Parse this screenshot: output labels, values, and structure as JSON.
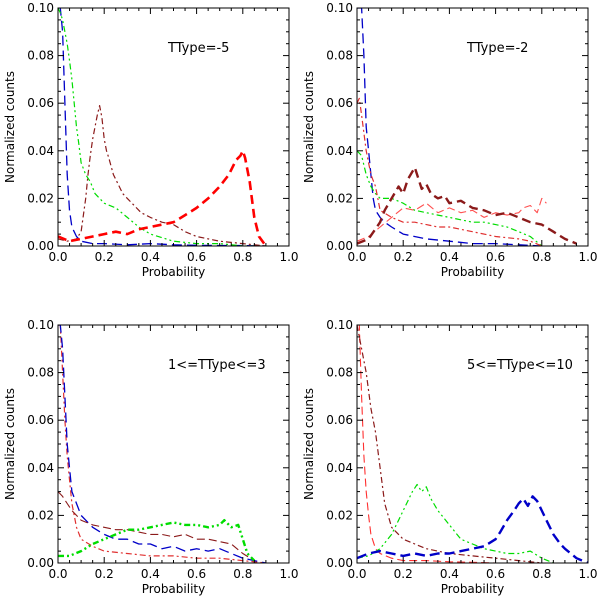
{
  "chart_data": [
    {
      "type": "line",
      "annotation": "TType=-5",
      "xlabel": "Probability",
      "ylabel": "Normalized counts",
      "xlim": [
        0.0,
        1.0
      ],
      "ylim": [
        0.0,
        0.1
      ],
      "xticks": [
        "0.0",
        "0.2",
        "0.4",
        "0.6",
        "0.8",
        "1.0"
      ],
      "yticks": [
        "0.00",
        "0.02",
        "0.04",
        "0.06",
        "0.08",
        "0.10"
      ],
      "series": [
        {
          "name": "blue long-dash",
          "color": "#0000c8",
          "dash": "10,5",
          "width": 1.3,
          "x": [
            0.0,
            0.01,
            0.02,
            0.03,
            0.04,
            0.05,
            0.06,
            0.08,
            0.1,
            0.15,
            0.2,
            0.3,
            0.4,
            0.5,
            0.6,
            0.7,
            0.8,
            0.9
          ],
          "y": [
            0.1,
            0.1,
            0.09,
            0.06,
            0.03,
            0.015,
            0.008,
            0.004,
            0.002,
            0.001,
            0.001,
            0.0005,
            0.001,
            0.0005,
            0.0003,
            0.0002,
            0.0002,
            0.0
          ]
        },
        {
          "name": "green dash-dot-dot",
          "color": "#00dd00",
          "dash": "6,3,2,3,2,3",
          "width": 1.2,
          "x": [
            0.0,
            0.01,
            0.02,
            0.03,
            0.04,
            0.05,
            0.06,
            0.07,
            0.08,
            0.09,
            0.1,
            0.12,
            0.14,
            0.16,
            0.18,
            0.2,
            0.25,
            0.3,
            0.35,
            0.4,
            0.5,
            0.6,
            0.7,
            0.8,
            0.9
          ],
          "y": [
            0.1,
            0.098,
            0.095,
            0.09,
            0.085,
            0.078,
            0.07,
            0.06,
            0.05,
            0.043,
            0.035,
            0.03,
            0.027,
            0.022,
            0.02,
            0.018,
            0.016,
            0.012,
            0.008,
            0.005,
            0.002,
            0.001,
            0.001,
            0.0,
            0.0
          ]
        },
        {
          "name": "dark red dash-dot",
          "color": "#8b1a1a",
          "dash": "6,3,2,3",
          "width": 1.2,
          "x": [
            0.0,
            0.04,
            0.08,
            0.1,
            0.12,
            0.13,
            0.14,
            0.15,
            0.16,
            0.17,
            0.18,
            0.19,
            0.2,
            0.21,
            0.22,
            0.24,
            0.26,
            0.28,
            0.3,
            0.33,
            0.36,
            0.4,
            0.45,
            0.5,
            0.55,
            0.6,
            0.65,
            0.7,
            0.8,
            0.9
          ],
          "y": [
            0.003,
            0.002,
            0.003,
            0.006,
            0.02,
            0.03,
            0.038,
            0.045,
            0.05,
            0.055,
            0.059,
            0.054,
            0.045,
            0.04,
            0.037,
            0.03,
            0.026,
            0.022,
            0.02,
            0.017,
            0.014,
            0.012,
            0.01,
            0.009,
            0.006,
            0.004,
            0.003,
            0.002,
            0.001,
            0.0
          ]
        },
        {
          "name": "red thick dash",
          "color": "#ff0000",
          "dash": "9,5",
          "width": 2.6,
          "x": [
            0.0,
            0.05,
            0.1,
            0.15,
            0.2,
            0.25,
            0.3,
            0.35,
            0.4,
            0.45,
            0.5,
            0.55,
            0.6,
            0.65,
            0.7,
            0.74,
            0.77,
            0.79,
            0.8,
            0.81,
            0.83,
            0.85,
            0.87,
            0.9
          ],
          "y": [
            0.004,
            0.002,
            0.003,
            0.004,
            0.005,
            0.006,
            0.005,
            0.007,
            0.008,
            0.009,
            0.01,
            0.013,
            0.016,
            0.02,
            0.025,
            0.03,
            0.036,
            0.038,
            0.04,
            0.037,
            0.027,
            0.012,
            0.004,
            0.0
          ]
        }
      ]
    },
    {
      "type": "line",
      "annotation": "TType=-2",
      "xlabel": "Probability",
      "ylabel": "Normalized counts",
      "xlim": [
        0.0,
        1.0
      ],
      "ylim": [
        0.0,
        0.1
      ],
      "xticks": [
        "0.0",
        "0.2",
        "0.4",
        "0.6",
        "0.8",
        "1.0"
      ],
      "yticks": [
        "0.00",
        "0.02",
        "0.04",
        "0.06",
        "0.08",
        "0.10"
      ],
      "series": [
        {
          "name": "blue long-dash",
          "color": "#0000c8",
          "dash": "10,5",
          "width": 1.3,
          "x": [
            0.0,
            0.01,
            0.02,
            0.03,
            0.04,
            0.05,
            0.06,
            0.07,
            0.08,
            0.1,
            0.12,
            0.15,
            0.2,
            0.3,
            0.4,
            0.5,
            0.6,
            0.7,
            0.8
          ],
          "y": [
            0.1,
            0.1,
            0.1,
            0.08,
            0.05,
            0.04,
            0.03,
            0.02,
            0.015,
            0.012,
            0.01,
            0.008,
            0.005,
            0.003,
            0.002,
            0.001,
            0.001,
            0.0005,
            0.0
          ]
        },
        {
          "name": "green dash-dot-dot",
          "color": "#00dd00",
          "dash": "6,3,2,3,2,3",
          "width": 1.2,
          "x": [
            0.0,
            0.02,
            0.04,
            0.06,
            0.08,
            0.1,
            0.15,
            0.2,
            0.25,
            0.3,
            0.35,
            0.4,
            0.45,
            0.5,
            0.55,
            0.6,
            0.65,
            0.7,
            0.75,
            0.8
          ],
          "y": [
            0.04,
            0.038,
            0.03,
            0.025,
            0.022,
            0.02,
            0.02,
            0.018,
            0.015,
            0.014,
            0.013,
            0.012,
            0.011,
            0.01,
            0.01,
            0.009,
            0.008,
            0.006,
            0.004,
            0.0
          ]
        },
        {
          "name": "red dash-dot",
          "color": "#e03030",
          "dash": "6,3,2,3",
          "width": 1.2,
          "x": [
            0.0,
            0.01,
            0.02,
            0.04,
            0.06,
            0.08,
            0.1,
            0.15,
            0.2,
            0.25,
            0.3,
            0.35,
            0.4,
            0.5,
            0.6,
            0.7,
            0.75,
            0.8
          ],
          "y": [
            0.06,
            0.062,
            0.055,
            0.04,
            0.03,
            0.025,
            0.015,
            0.012,
            0.01,
            0.01,
            0.009,
            0.008,
            0.008,
            0.006,
            0.004,
            0.003,
            0.002,
            0.0
          ]
        },
        {
          "name": "red thin dash",
          "color": "#ff5050",
          "dash": "8,4",
          "width": 1.1,
          "x": [
            0.0,
            0.05,
            0.1,
            0.15,
            0.2,
            0.25,
            0.3,
            0.35,
            0.4,
            0.45,
            0.5,
            0.55,
            0.6,
            0.65,
            0.7,
            0.72,
            0.75,
            0.78,
            0.8,
            0.82
          ],
          "y": [
            0.002,
            0.004,
            0.008,
            0.012,
            0.016,
            0.015,
            0.018,
            0.014,
            0.016,
            0.014,
            0.015,
            0.012,
            0.014,
            0.013,
            0.014,
            0.016,
            0.017,
            0.014,
            0.02,
            0.018
          ]
        },
        {
          "name": "dark red thick dash",
          "color": "#8b1a1a",
          "dash": "9,5",
          "width": 2.4,
          "x": [
            0.0,
            0.05,
            0.1,
            0.12,
            0.15,
            0.18,
            0.2,
            0.22,
            0.25,
            0.28,
            0.3,
            0.32,
            0.35,
            0.38,
            0.4,
            0.45,
            0.5,
            0.55,
            0.6,
            0.65,
            0.7,
            0.75,
            0.8,
            0.85,
            0.9,
            0.95
          ],
          "y": [
            0.001,
            0.003,
            0.01,
            0.015,
            0.02,
            0.025,
            0.022,
            0.028,
            0.033,
            0.024,
            0.026,
            0.022,
            0.02,
            0.021,
            0.018,
            0.019,
            0.016,
            0.015,
            0.013,
            0.014,
            0.012,
            0.01,
            0.009,
            0.006,
            0.003,
            0.001
          ]
        }
      ]
    },
    {
      "type": "line",
      "annotation": "1<=TType<=3",
      "xlabel": "Probability",
      "ylabel": "Normalized counts",
      "xlim": [
        0.0,
        1.0
      ],
      "ylim": [
        0.0,
        0.1
      ],
      "xticks": [
        "0.0",
        "0.2",
        "0.4",
        "0.6",
        "0.8",
        "1.0"
      ],
      "yticks": [
        "0.00",
        "0.02",
        "0.04",
        "0.06",
        "0.08",
        "0.10"
      ],
      "series": [
        {
          "name": "red dash-dot",
          "color": "#e03030",
          "dash": "6,3,2,3",
          "width": 1.2,
          "x": [
            0.0,
            0.01,
            0.02,
            0.03,
            0.04,
            0.05,
            0.06,
            0.08,
            0.1,
            0.15,
            0.2,
            0.3,
            0.4,
            0.5,
            0.6,
            0.7,
            0.8,
            0.9
          ],
          "y": [
            0.1,
            0.1,
            0.08,
            0.06,
            0.045,
            0.035,
            0.025,
            0.015,
            0.01,
            0.007,
            0.005,
            0.004,
            0.003,
            0.003,
            0.002,
            0.002,
            0.001,
            0.0
          ]
        },
        {
          "name": "blue long-dash",
          "color": "#0000c8",
          "dash": "10,5",
          "width": 1.3,
          "x": [
            0.0,
            0.01,
            0.02,
            0.03,
            0.04,
            0.05,
            0.06,
            0.08,
            0.1,
            0.15,
            0.2,
            0.25,
            0.3,
            0.35,
            0.4,
            0.45,
            0.5,
            0.55,
            0.6,
            0.65,
            0.7,
            0.75,
            0.8,
            0.85,
            0.9
          ],
          "y": [
            0.1,
            0.1,
            0.09,
            0.07,
            0.05,
            0.04,
            0.03,
            0.025,
            0.02,
            0.015,
            0.012,
            0.01,
            0.01,
            0.008,
            0.008,
            0.006,
            0.007,
            0.005,
            0.006,
            0.005,
            0.006,
            0.004,
            0.002,
            0.001,
            0.0
          ]
        },
        {
          "name": "dark red dash",
          "color": "#8b1a1a",
          "dash": "8,4",
          "width": 1.1,
          "x": [
            0.0,
            0.02,
            0.04,
            0.06,
            0.08,
            0.1,
            0.15,
            0.2,
            0.25,
            0.3,
            0.35,
            0.4,
            0.45,
            0.5,
            0.55,
            0.6,
            0.65,
            0.7,
            0.75,
            0.8,
            0.85
          ],
          "y": [
            0.03,
            0.028,
            0.025,
            0.022,
            0.02,
            0.018,
            0.016,
            0.015,
            0.014,
            0.014,
            0.013,
            0.012,
            0.012,
            0.011,
            0.012,
            0.01,
            0.01,
            0.009,
            0.008,
            0.004,
            0.001
          ]
        },
        {
          "name": "green thick dash-dot-dot",
          "color": "#00dd00",
          "dash": "6,3,2,3,2,3",
          "width": 2.4,
          "x": [
            0.0,
            0.05,
            0.1,
            0.15,
            0.2,
            0.25,
            0.3,
            0.35,
            0.4,
            0.45,
            0.5,
            0.55,
            0.6,
            0.65,
            0.7,
            0.72,
            0.75,
            0.78,
            0.8,
            0.82,
            0.85
          ],
          "y": [
            0.003,
            0.003,
            0.005,
            0.008,
            0.01,
            0.012,
            0.014,
            0.014,
            0.015,
            0.016,
            0.017,
            0.016,
            0.016,
            0.015,
            0.016,
            0.018,
            0.015,
            0.016,
            0.01,
            0.004,
            0.001
          ]
        }
      ]
    },
    {
      "type": "line",
      "annotation": "5<=TType<=10",
      "xlabel": "Probability",
      "ylabel": "Normalized counts",
      "xlim": [
        0.0,
        1.0
      ],
      "ylim": [
        0.0,
        0.1
      ],
      "xticks": [
        "0.0",
        "0.2",
        "0.4",
        "0.6",
        "0.8",
        "1.0"
      ],
      "yticks": [
        "0.00",
        "0.02",
        "0.04",
        "0.06",
        "0.08",
        "0.10"
      ],
      "series": [
        {
          "name": "red dash",
          "color": "#ff3030",
          "dash": "8,4",
          "width": 1.1,
          "x": [
            0.0,
            0.01,
            0.02,
            0.03,
            0.04,
            0.05,
            0.06,
            0.08,
            0.1,
            0.15,
            0.2,
            0.3,
            0.4,
            0.5,
            0.6
          ],
          "y": [
            0.1,
            0.1,
            0.07,
            0.045,
            0.03,
            0.02,
            0.012,
            0.006,
            0.004,
            0.002,
            0.001,
            0.001,
            0.0005,
            0.0003,
            0.0
          ]
        },
        {
          "name": "dark red dash-dot",
          "color": "#8b1a1a",
          "dash": "6,3,2,3",
          "width": 1.2,
          "x": [
            0.0,
            0.02,
            0.04,
            0.06,
            0.08,
            0.1,
            0.12,
            0.15,
            0.2,
            0.25,
            0.3,
            0.4,
            0.5,
            0.6,
            0.7,
            0.8
          ],
          "y": [
            0.1,
            0.09,
            0.08,
            0.065,
            0.055,
            0.04,
            0.025,
            0.015,
            0.01,
            0.008,
            0.006,
            0.004,
            0.003,
            0.002,
            0.001,
            0.0
          ]
        },
        {
          "name": "green dash-dot-dot",
          "color": "#00dd00",
          "dash": "6,3,2,3,2,3",
          "width": 1.2,
          "x": [
            0.0,
            0.05,
            0.1,
            0.15,
            0.18,
            0.2,
            0.22,
            0.24,
            0.26,
            0.28,
            0.3,
            0.32,
            0.35,
            0.4,
            0.45,
            0.5,
            0.55,
            0.6,
            0.65,
            0.7,
            0.75,
            0.8,
            0.85
          ],
          "y": [
            0.002,
            0.003,
            0.006,
            0.012,
            0.018,
            0.022,
            0.026,
            0.03,
            0.033,
            0.03,
            0.032,
            0.027,
            0.022,
            0.016,
            0.01,
            0.008,
            0.006,
            0.005,
            0.004,
            0.004,
            0.005,
            0.002,
            0.0
          ]
        },
        {
          "name": "blue thick long-dash",
          "color": "#0000c8",
          "dash": "10,5",
          "width": 2.4,
          "x": [
            0.0,
            0.05,
            0.1,
            0.15,
            0.2,
            0.25,
            0.3,
            0.35,
            0.4,
            0.45,
            0.5,
            0.55,
            0.6,
            0.62,
            0.65,
            0.68,
            0.7,
            0.72,
            0.74,
            0.76,
            0.78,
            0.8,
            0.82,
            0.85,
            0.88,
            0.9,
            0.95,
            1.0
          ],
          "y": [
            0.002,
            0.004,
            0.005,
            0.004,
            0.003,
            0.004,
            0.003,
            0.004,
            0.004,
            0.005,
            0.006,
            0.007,
            0.01,
            0.013,
            0.018,
            0.022,
            0.025,
            0.027,
            0.024,
            0.028,
            0.026,
            0.022,
            0.018,
            0.012,
            0.008,
            0.006,
            0.002,
            0.0
          ]
        }
      ]
    }
  ]
}
